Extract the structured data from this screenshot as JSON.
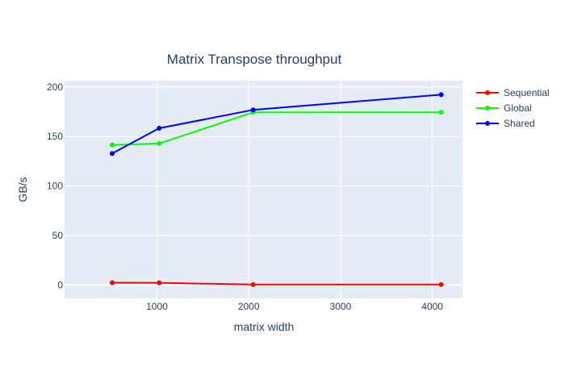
{
  "chart_data": {
    "type": "line",
    "title": "Matrix Transpose throughput",
    "xlabel": "matrix width",
    "ylabel": "GB/s",
    "x": [
      512,
      1024,
      2048,
      4096
    ],
    "xlim": [
      -6.6,
      4328.6
    ],
    "ylim": [
      -13.6,
      206.4
    ],
    "x_ticks": [
      1000,
      2000,
      3000,
      4000
    ],
    "x_tick_labels": [
      "1000",
      "2000",
      "3000",
      "4000"
    ],
    "y_ticks": [
      0,
      50,
      100,
      150,
      200
    ],
    "y_tick_labels": [
      "0",
      "50",
      "100",
      "150",
      "200"
    ],
    "grid": true,
    "plot_background": "#e5ecf6",
    "legend_position": "top-right",
    "series": [
      {
        "name": "Sequential",
        "color": "#ff0000",
        "values": [
          2.3,
          2.2,
          0.4,
          0.5
        ]
      },
      {
        "name": "Global",
        "color": "#00ff00",
        "values": [
          141.5,
          142.9,
          174.5,
          174.5
        ]
      },
      {
        "name": "Shared",
        "color": "#0000ff",
        "values": [
          132.8,
          158.3,
          176.9,
          192.2
        ]
      }
    ]
  }
}
